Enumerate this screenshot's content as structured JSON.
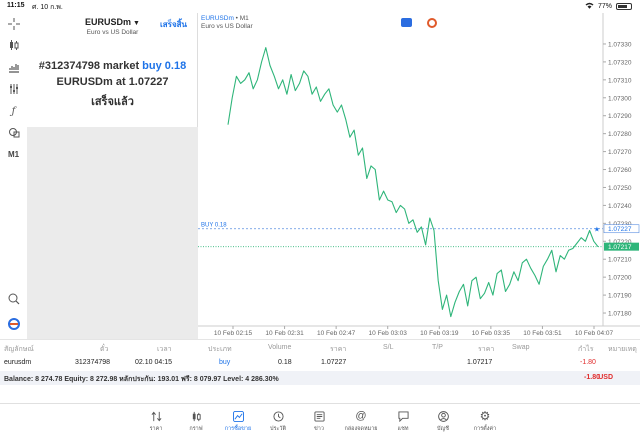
{
  "status_bar": {
    "time": "11:15",
    "date": "ศ. 10 ก.พ.",
    "battery": "77%",
    "battery_level": 0.77
  },
  "toolbar": {
    "timeframe": "M1"
  },
  "trade_panel": {
    "symbol": "EURUSDm",
    "done_label": "เสร็จสิ้น",
    "description": "Euro vs US Dollar",
    "message_prefix": "#312374798 market",
    "message_action": "buy 0.18",
    "message_line2_prefix": "EURUSDm at",
    "message_price": "1.07227",
    "message_line3": "เสร็จแล้ว"
  },
  "chart": {
    "symbol": "EURUSDm",
    "timeframe": " • M1",
    "description": "Euro vs US Dollar",
    "buy_label": "BUY 0.18",
    "buy_line_price": "1.07227",
    "current_price": "1.07217"
  },
  "chart_data": {
    "type": "line",
    "title": "",
    "x_ticks": [
      "10 Feb 02:15",
      "10 Feb 02:31",
      "10 Feb 02:47",
      "10 Feb 03:03",
      "10 Feb 03:19",
      "10 Feb 03:35",
      "10 Feb 03:51",
      "10 Feb 04:07"
    ],
    "y_ticks": [
      "1.07330",
      "1.07320",
      "1.07310",
      "1.07300",
      "1.07290",
      "1.07280",
      "1.07270",
      "1.07260",
      "1.07250",
      "1.07240",
      "1.07230",
      "1.07220",
      "1.07210",
      "1.07200",
      "1.07190",
      "1.07180"
    ],
    "ylim": [
      1.07175,
      1.07335
    ],
    "series": [
      {
        "values": [
          1.07285,
          1.073,
          1.07312,
          1.07308,
          1.0731,
          1.07314,
          1.07305,
          1.0731,
          1.0732,
          1.07328,
          1.07318,
          1.07312,
          1.07305,
          1.0731,
          1.07302,
          1.07313,
          1.07304,
          1.07308,
          1.07315,
          1.07312,
          1.07302,
          1.07306,
          1.07298,
          1.07302,
          1.07305,
          1.07296,
          1.07292,
          1.07296,
          1.07288,
          1.07278,
          1.07282,
          1.07268,
          1.07272,
          1.07255,
          1.07262,
          1.0726,
          1.07243,
          1.07248,
          1.07243,
          1.07242,
          1.07236,
          1.0724,
          1.07238,
          1.0723,
          1.07232,
          1.07225,
          1.07228,
          1.07218,
          1.07233,
          1.07226,
          1.07198,
          1.07182,
          1.0719,
          1.07178,
          1.07186,
          1.07192,
          1.07196,
          1.07184,
          1.07198,
          1.072,
          1.07188,
          1.07191,
          1.07197,
          1.0719,
          1.07202,
          1.07204,
          1.07192,
          1.07196,
          1.07203,
          1.07198,
          1.07208,
          1.0721,
          1.07205,
          1.07201,
          1.07196,
          1.07206,
          1.0721,
          1.07215,
          1.07203,
          1.07212,
          1.0721,
          1.07215,
          1.07216,
          1.07219,
          1.07222,
          1.0722,
          1.07226,
          1.0722,
          1.07217
        ]
      }
    ],
    "buy_level": 1.07227,
    "current_level": 1.07217,
    "grid": false
  },
  "positions": {
    "headers": [
      "สัญลักษณ์",
      "ตั๋ว",
      "เวลา",
      "ประเภท",
      "Volume",
      "ราคา",
      "S/L",
      "T/P",
      "ราคา",
      "Swap",
      "กำไร",
      "หมายเหตุ"
    ],
    "row": {
      "symbol": "eurusdm",
      "ticket": "312374798",
      "time": "02.10 04:15",
      "type": "buy",
      "volume": "0.18",
      "price": "1.07227",
      "sl": "",
      "tp": "",
      "current": "1.07217",
      "swap": "",
      "profit": "-1.80",
      "comment": ""
    },
    "balance_text": "Balance: 8 274.78 Equity: 8 272.98 หลักประกัน: 193.01 ฟรี: 8 079.97 Level: 4 286.30%",
    "total_profit": "-1.80",
    "currency": "USD"
  },
  "tabbar": {
    "tabs": [
      {
        "label": "ราคา",
        "icon": "arrows-updown-icon"
      },
      {
        "label": "กราฟ",
        "icon": "candles-icon"
      },
      {
        "label": "การซื้อขาย",
        "icon": "trade-chart-icon"
      },
      {
        "label": "ประวัติ",
        "icon": "history-icon"
      },
      {
        "label": "ข่าว",
        "icon": "news-icon"
      },
      {
        "label": "กล่องจดหมาย",
        "icon": "mail-at-icon"
      },
      {
        "label": "แชท",
        "icon": "chat-icon"
      },
      {
        "label": "บัญชี",
        "icon": "account-icon"
      },
      {
        "label": "การตั้งค่า",
        "icon": "settings-gear-icon"
      }
    ],
    "active_index": 2
  },
  "colors": {
    "accent": "#1e73e8",
    "line": "#2fb57a",
    "loss": "#e02b2b"
  }
}
